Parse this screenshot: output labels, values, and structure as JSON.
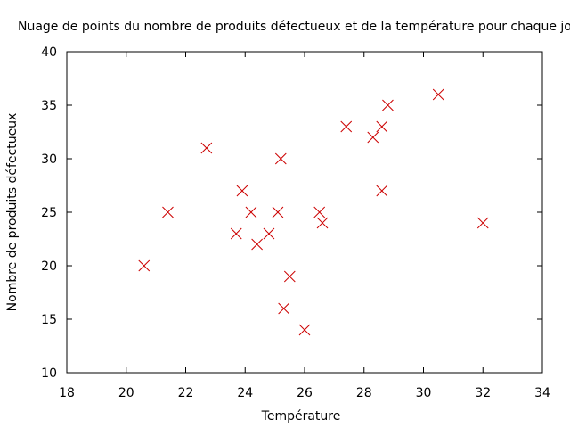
{
  "chart_data": {
    "type": "scatter",
    "title": "Nuage de points du nombre de produits défectueux et de la température pour chaque jour",
    "xlabel": "Température",
    "ylabel": "Nombre de produits défectueux",
    "xlim": [
      18,
      34
    ],
    "ylim": [
      10,
      40
    ],
    "xticks": [
      18,
      20,
      22,
      24,
      26,
      28,
      30,
      32,
      34
    ],
    "yticks": [
      10,
      15,
      20,
      25,
      30,
      35,
      40
    ],
    "grid": false,
    "legend": "none",
    "marker": "x",
    "marker_color": "#cc0000",
    "points": [
      {
        "x": 20.6,
        "y": 20
      },
      {
        "x": 21.4,
        "y": 25
      },
      {
        "x": 22.7,
        "y": 31
      },
      {
        "x": 23.7,
        "y": 23
      },
      {
        "x": 23.9,
        "y": 27
      },
      {
        "x": 24.2,
        "y": 25
      },
      {
        "x": 24.4,
        "y": 22
      },
      {
        "x": 24.8,
        "y": 23
      },
      {
        "x": 25.1,
        "y": 25
      },
      {
        "x": 25.2,
        "y": 30
      },
      {
        "x": 25.3,
        "y": 16
      },
      {
        "x": 25.5,
        "y": 19
      },
      {
        "x": 26.0,
        "y": 14
      },
      {
        "x": 26.5,
        "y": 25
      },
      {
        "x": 26.6,
        "y": 24
      },
      {
        "x": 27.4,
        "y": 33
      },
      {
        "x": 28.3,
        "y": 32
      },
      {
        "x": 28.6,
        "y": 33
      },
      {
        "x": 28.6,
        "y": 27
      },
      {
        "x": 28.8,
        "y": 35
      },
      {
        "x": 30.5,
        "y": 36
      },
      {
        "x": 32.0,
        "y": 24
      }
    ]
  }
}
